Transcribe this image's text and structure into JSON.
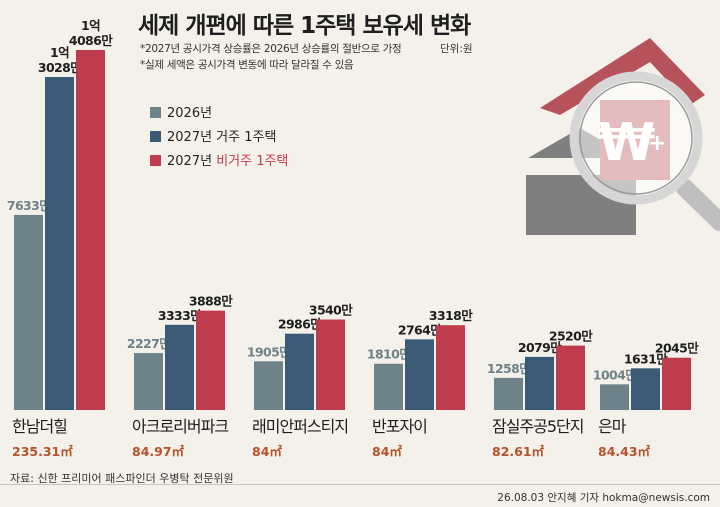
{
  "title": "세제 개편에 따른 1주택 보유세 변화",
  "notes": [
    "*2027년 공시가격 상승률은 2026년 상승률의 절반으로 가정",
    "*실제 세액은 공시가격 변동에 따라 달라질 수 있음"
  ],
  "unit": "단위:원",
  "source": "자료: 신한 프리미어 패스파인더 우병탁 전문위원",
  "credit": "26.08.03 안지혜 기자 hokma@newsis.com",
  "colors": {
    "s2026": "#6e8289",
    "s2027_live": "#3a5a75",
    "s2027_nolive": "#bf3c4e",
    "area": "#b6522d"
  },
  "legend": [
    {
      "text": "2026년",
      "highlight": ""
    },
    {
      "text": "2027년 거주 1주택",
      "highlight": ""
    },
    {
      "text": "2027년 ",
      "highlight": "비거주 1주택"
    }
  ],
  "chart_data": {
    "type": "bar",
    "categories": [
      "한남더힐",
      "아크로리버파크",
      "래미안퍼스티지",
      "반포자이",
      "잠실주공5단지",
      "은마"
    ],
    "areas": [
      "235.31㎡",
      "84.97㎡",
      "84㎡",
      "84㎡",
      "82.61㎡",
      "84.43㎡"
    ],
    "series": [
      {
        "name": "2026년",
        "values": [
          7633,
          2227,
          1905,
          1810,
          1258,
          1004
        ],
        "labels": [
          "7633만",
          "2227만",
          "1905만",
          "1810만",
          "1258만",
          "1004만"
        ]
      },
      {
        "name": "2027년 거주 1주택",
        "values": [
          13028,
          3333,
          2986,
          2764,
          2079,
          1631
        ],
        "labels": [
          "1억\n3028만",
          "3333만",
          "2986만",
          "2764만",
          "2079만",
          "1631만"
        ]
      },
      {
        "name": "2027년 비거주 1주택",
        "values": [
          14086,
          3888,
          3540,
          3318,
          2520,
          2045
        ],
        "labels": [
          "1억\n4086만",
          "3888만",
          "3540만",
          "3318만",
          "2520만",
          "2045만"
        ]
      }
    ],
    "unit": "만원"
  }
}
